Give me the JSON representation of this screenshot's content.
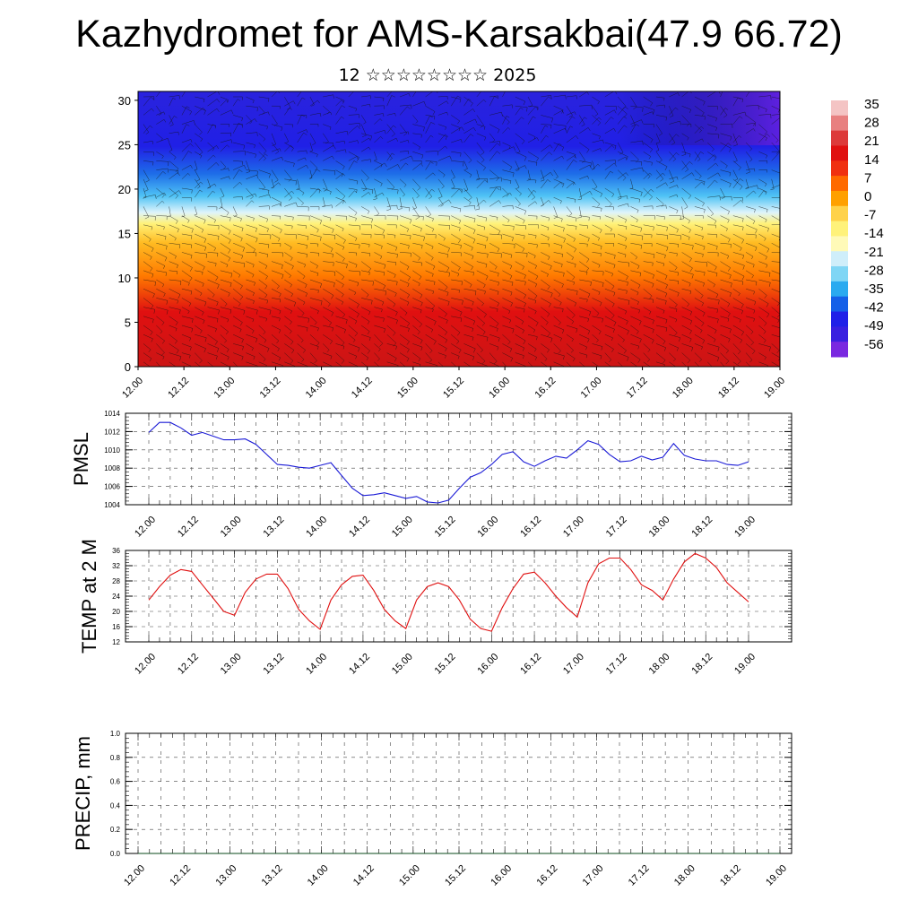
{
  "page": {
    "title": "Kazhydromet for AMS-Karsakbai(47.9 66.72)",
    "subtitle": "12 ☆☆☆☆☆☆☆☆ 2025"
  },
  "colors": {
    "pmsl_line": "#1a1ad6",
    "temp_line": "#e01010",
    "precip_line": "#0a4a1a",
    "colorbar": [
      "#f4c4c4",
      "#e88080",
      "#dd3a3a",
      "#e01010",
      "#f03010",
      "#ff6a00",
      "#ffa000",
      "#ffd24a",
      "#fff27a",
      "#fffab8",
      "#cfeefa",
      "#7fd6f5",
      "#2aaaf0",
      "#1560e8",
      "#2020e8",
      "#3a20e0",
      "#7a28e0"
    ]
  },
  "chart_data": [
    {
      "type": "heatmap",
      "name": "cross-section",
      "x_ticks": [
        "12.00",
        "12.12",
        "13.00",
        "13.12",
        "14.00",
        "14.12",
        "15.00",
        "15.12",
        "16.00",
        "16.12",
        "17.00",
        "17.12",
        "18.00",
        "18.12",
        "19.00"
      ],
      "y_ticks": [
        "0",
        "5",
        "10",
        "15",
        "20",
        "25",
        "30"
      ],
      "ylim": [
        0,
        31
      ],
      "colorbar_labels": [
        "35",
        "28",
        "21",
        "14",
        "7",
        "0",
        "-7",
        "-14",
        "-21",
        "-28",
        "-35",
        "-42",
        "-49",
        "-56"
      ],
      "colorbar_range": [
        -63,
        35
      ]
    },
    {
      "type": "line",
      "name": "pmsl",
      "ylabel": "PMSL",
      "x_ticks": [
        "12.00",
        "12.12",
        "13.00",
        "13.12",
        "14.00",
        "14.12",
        "15.00",
        "15.12",
        "16.00",
        "16.12",
        "17.00",
        "17.12",
        "18.00",
        "18.12",
        "19.00"
      ],
      "y_ticks": [
        "1004",
        "1006",
        "1008",
        "1010",
        "1012",
        "1014"
      ],
      "ylim": [
        1004,
        1014
      ],
      "x": [
        0,
        3,
        6,
        9,
        12,
        15,
        18,
        21,
        24,
        27,
        30,
        33,
        36,
        39,
        42,
        45,
        48,
        51,
        54,
        57,
        60,
        63,
        66,
        69,
        72,
        75,
        78,
        81,
        84,
        87,
        90,
        93,
        96,
        99,
        102,
        105,
        108,
        111,
        114,
        117,
        120,
        123,
        126,
        129,
        132,
        135,
        138,
        141,
        144,
        147,
        150,
        153,
        156,
        159,
        162,
        165,
        168
      ],
      "values": [
        1011.9,
        1013.0,
        1013.0,
        1012.4,
        1011.6,
        1011.9,
        1011.5,
        1011.1,
        1011.1,
        1011.2,
        1010.6,
        1009.5,
        1008.4,
        1008.3,
        1008.1,
        1008.0,
        1008.3,
        1008.6,
        1007.2,
        1005.8,
        1005.0,
        1005.1,
        1005.3,
        1005.0,
        1004.7,
        1004.9,
        1004.3,
        1004.2,
        1004.5,
        1005.8,
        1007.0,
        1007.5,
        1008.4,
        1009.5,
        1009.8,
        1008.7,
        1008.2,
        1008.8,
        1009.3,
        1009.1,
        1010.0,
        1011.0,
        1010.6,
        1009.5,
        1008.7,
        1008.8,
        1009.3,
        1008.9,
        1009.2,
        1010.7,
        1009.4,
        1009.0,
        1008.8,
        1008.8,
        1008.4,
        1008.3,
        1008.7
      ]
    },
    {
      "type": "line",
      "name": "temp",
      "ylabel": "TEMP at 2 M",
      "x_ticks": [
        "12.00",
        "12.12",
        "13.00",
        "13.12",
        "14.00",
        "14.12",
        "15.00",
        "15.12",
        "16.00",
        "16.12",
        "17.00",
        "17.12",
        "18.00",
        "18.12",
        "19.00"
      ],
      "y_ticks": [
        "12",
        "16",
        "20",
        "24",
        "28",
        "32",
        "36"
      ],
      "ylim": [
        12,
        36
      ],
      "x": [
        0,
        3,
        6,
        9,
        12,
        15,
        18,
        21,
        24,
        27,
        30,
        33,
        36,
        39,
        42,
        45,
        48,
        51,
        54,
        57,
        60,
        63,
        66,
        69,
        72,
        75,
        78,
        81,
        84,
        87,
        90,
        93,
        96,
        99,
        102,
        105,
        108,
        111,
        114,
        117,
        120,
        123,
        126,
        129,
        132,
        135,
        138,
        141,
        144,
        147,
        150,
        153,
        156,
        159,
        162,
        165,
        168
      ],
      "values": [
        23.0,
        26.5,
        29.5,
        31.0,
        30.5,
        27.0,
        23.5,
        20.0,
        19.0,
        25.0,
        28.5,
        29.8,
        29.8,
        26.0,
        20.5,
        17.5,
        15.3,
        23.0,
        27.0,
        29.2,
        29.5,
        25.5,
        20.5,
        17.5,
        15.5,
        23.0,
        26.5,
        27.5,
        26.5,
        23.0,
        18.0,
        15.5,
        14.8,
        21.0,
        26.0,
        29.8,
        30.3,
        27.5,
        24.0,
        21.0,
        18.5,
        27.5,
        32.5,
        34.0,
        34.0,
        31.0,
        27.0,
        25.5,
        23.0,
        28.5,
        33.0,
        35.2,
        34.0,
        31.5,
        27.5,
        25.0,
        22.5
      ]
    },
    {
      "type": "line",
      "name": "precip",
      "ylabel": "PRECIP, mm",
      "x_ticks": [
        "12.00",
        "12.12",
        "13.00",
        "13.12",
        "14.00",
        "14.12",
        "15.00",
        "15.12",
        "16.00",
        "16.12",
        "17.00",
        "17.12",
        "18.00",
        "18.12",
        "19.00"
      ],
      "y_ticks": [
        "0.0",
        "0.2",
        "0.4",
        "0.6",
        "0.8",
        "1.0"
      ],
      "ylim": [
        0,
        1
      ],
      "x": [
        0,
        168
      ],
      "values": [
        0,
        0
      ]
    }
  ]
}
